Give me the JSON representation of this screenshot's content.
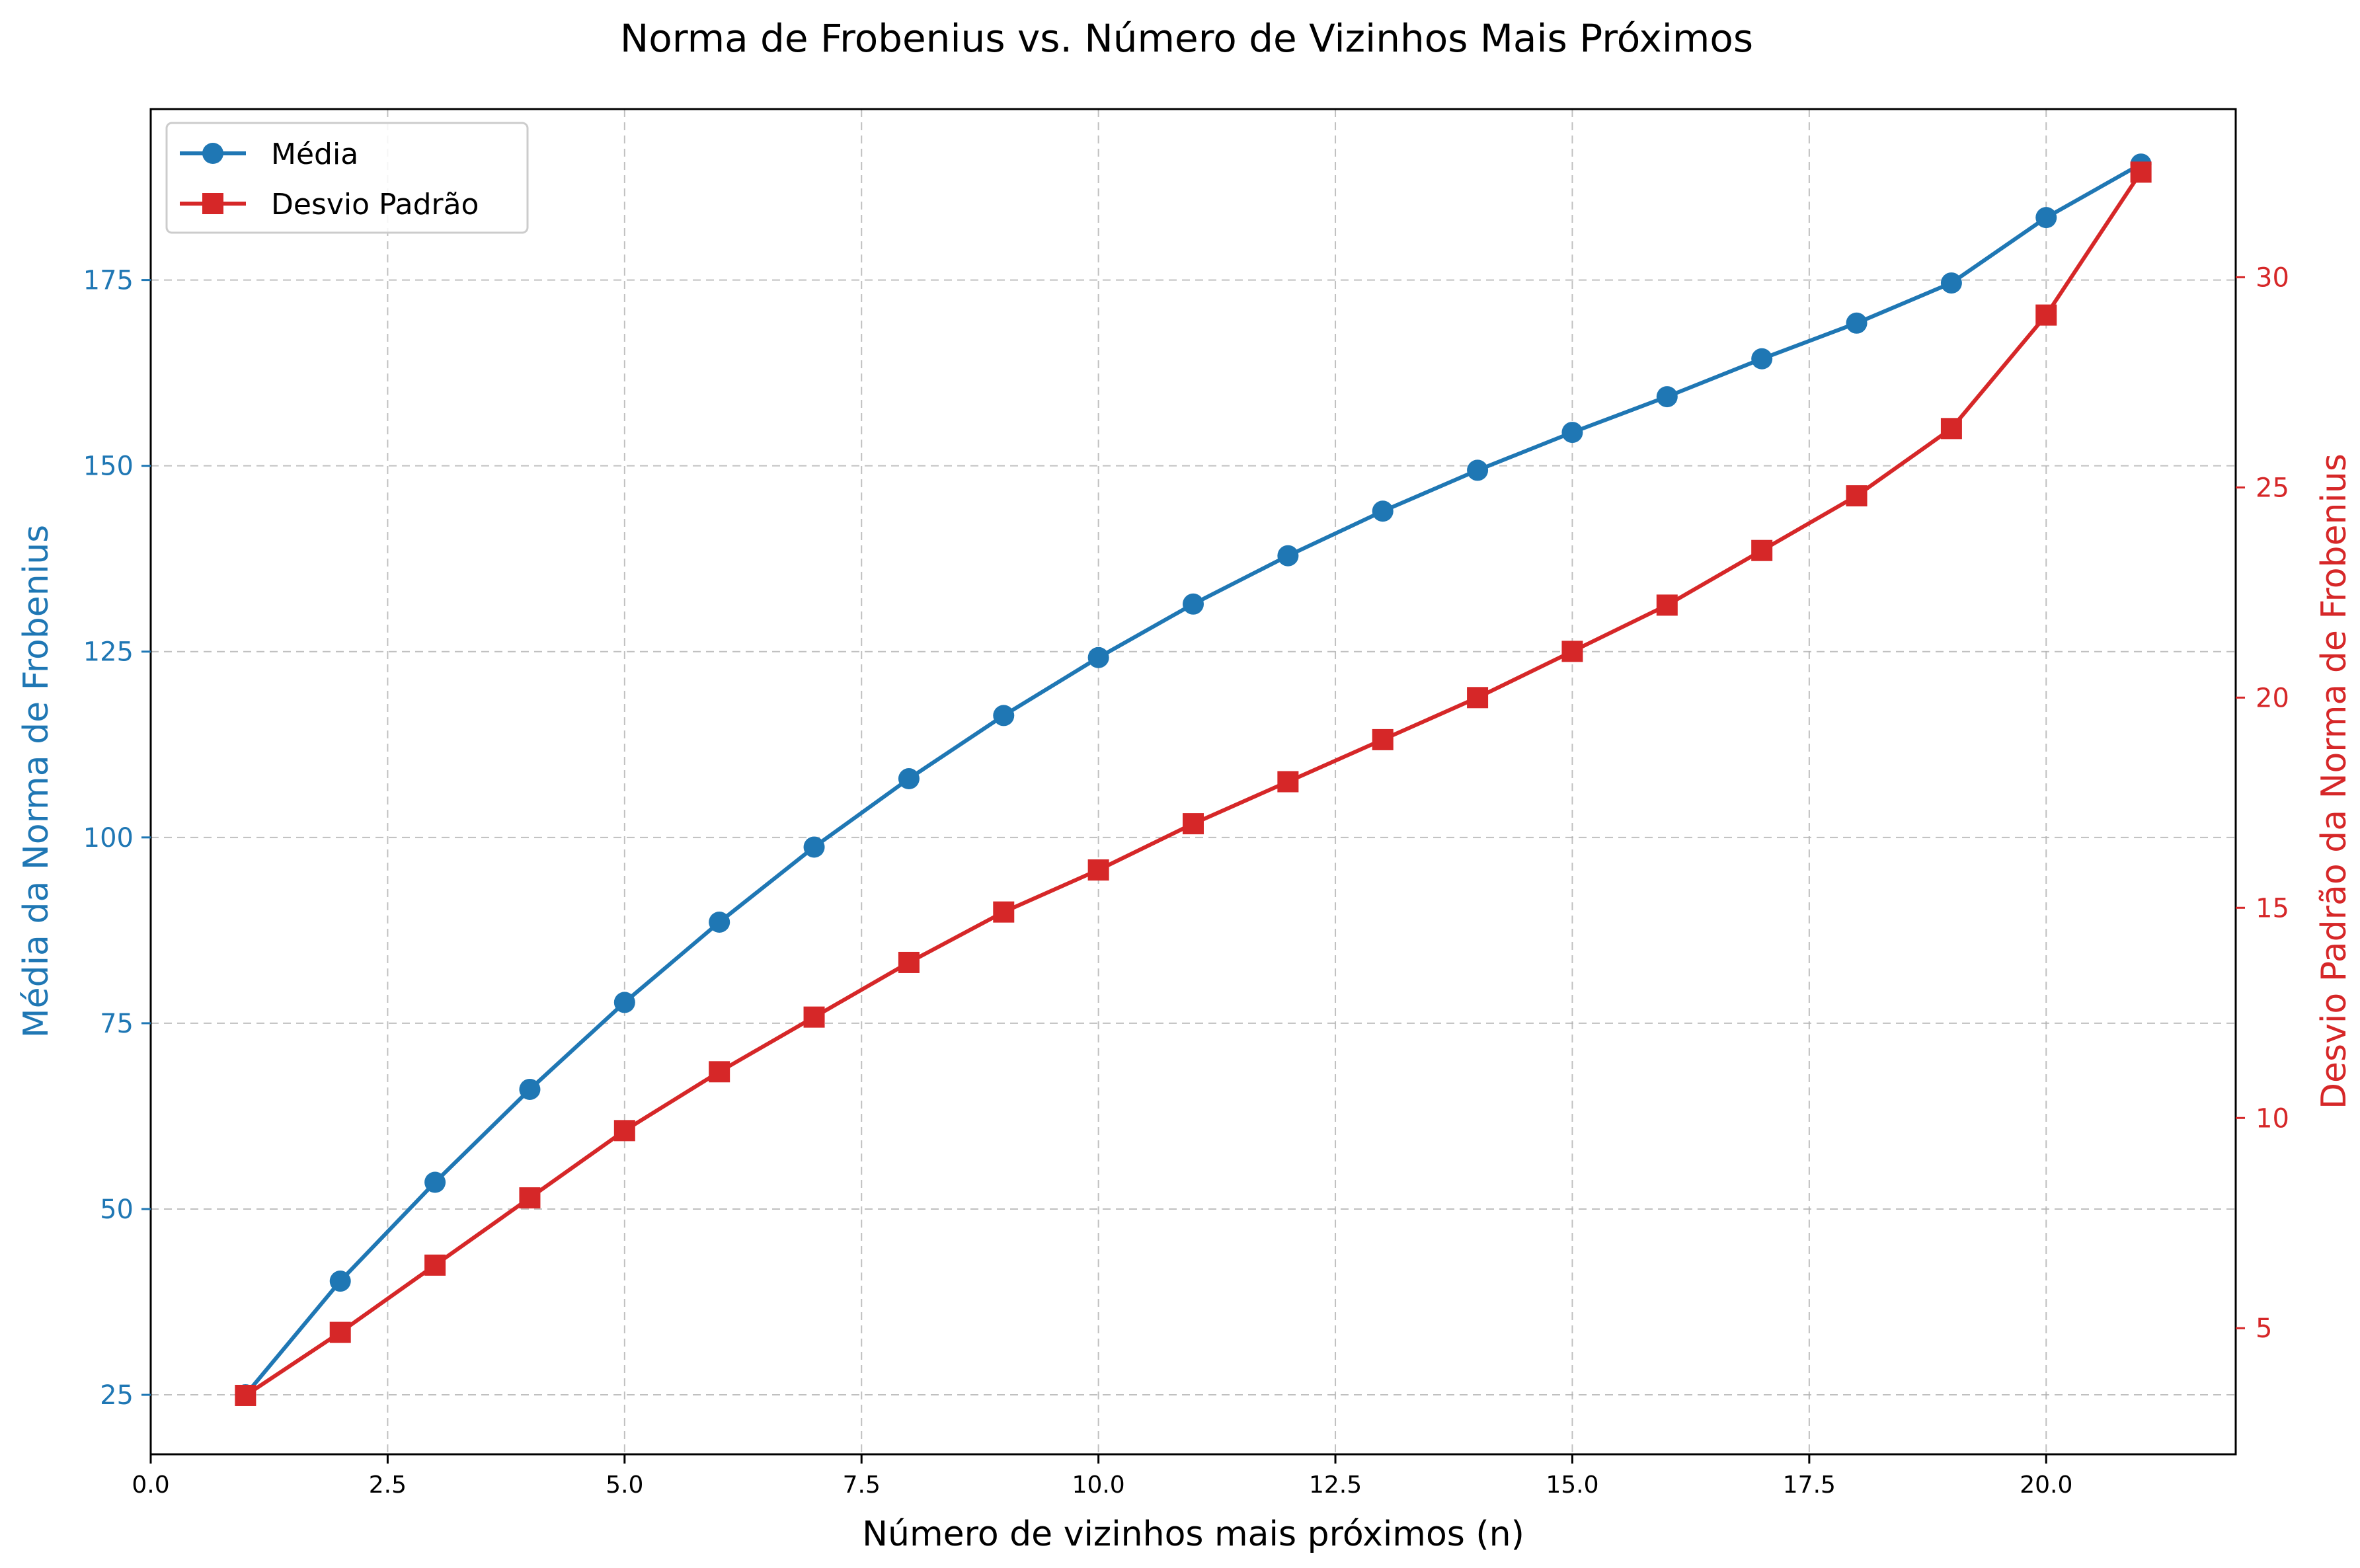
{
  "chart_data": {
    "type": "line",
    "title": "Norma de Frobenius vs. Número de Vizinhos Mais Próximos",
    "xlabel": "Número de vizinhos mais próximos (n)",
    "ylabel_left": "Média da Norma de Frobenius",
    "ylabel_right": "Desvio Padrão da Norma de Frobenius",
    "xlim": [
      0,
      22
    ],
    "ylim_left": [
      17,
      198
    ],
    "ylim_right": [
      2,
      34
    ],
    "x_ticks": [
      0,
      2.5,
      5,
      7.5,
      10,
      12.5,
      15,
      17.5,
      20
    ],
    "x_tick_labels": [
      "0.0",
      "2.5",
      "5.0",
      "7.5",
      "10.0",
      "12.5",
      "15.0",
      "17.5",
      "20.0"
    ],
    "y_left_ticks": [
      25,
      50,
      75,
      100,
      125,
      150,
      175
    ],
    "y_left_tick_labels": [
      "25",
      "50",
      "75",
      "100",
      "125",
      "150",
      "175"
    ],
    "y_right_ticks": [
      5,
      10,
      15,
      20,
      25,
      30
    ],
    "y_right_tick_labels": [
      "5",
      "10",
      "15",
      "20",
      "25",
      "30"
    ],
    "grid": true,
    "legend_position": "upper-left",
    "series": [
      {
        "name": "Média",
        "axis": "left",
        "color": "#1f77b4",
        "marker": "circle",
        "x": [
          1,
          2,
          3,
          4,
          5,
          6,
          7,
          8,
          9,
          10,
          11,
          12,
          13,
          14,
          15,
          16,
          17,
          18,
          19,
          20,
          21
        ],
        "values": [
          25,
          40.3,
          53.6,
          66.1,
          77.8,
          88.6,
          98.7,
          107.9,
          116.4,
          124.2,
          131.4,
          137.9,
          143.9,
          149.4,
          154.5,
          159.3,
          164.4,
          169.2,
          174.6,
          183.4,
          190.6
        ]
      },
      {
        "name": "Desvio Padrão",
        "axis": "right",
        "color": "#d62728",
        "marker": "square",
        "x": [
          1,
          2,
          3,
          4,
          5,
          6,
          7,
          8,
          9,
          10,
          11,
          12,
          13,
          14,
          15,
          16,
          17,
          18,
          19,
          20,
          21
        ],
        "values": [
          3.4,
          4.9,
          6.5,
          8.1,
          9.7,
          11.1,
          12.4,
          13.7,
          14.9,
          15.9,
          17.0,
          18.0,
          19.0,
          20.0,
          21.1,
          22.2,
          23.5,
          24.8,
          26.4,
          29.1,
          32.5
        ]
      }
    ]
  }
}
